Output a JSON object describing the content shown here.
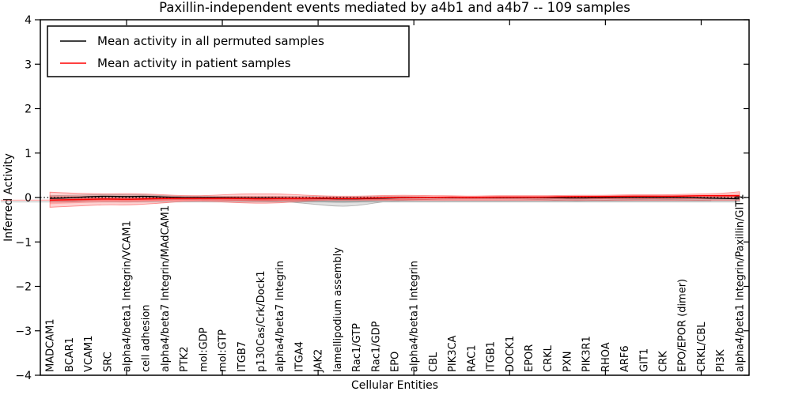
{
  "chart_data": {
    "type": "line",
    "title": "Paxillin-independent events mediated by a4b1 and a4b7 -- 109 samples",
    "xlabel": "Cellular Entities",
    "ylabel": "Inferred Activity",
    "ylim": [
      -4,
      4
    ],
    "ytick_labels": [
      "4",
      "3",
      "2",
      "1",
      "0",
      "−1",
      "−2",
      "−3",
      "−4"
    ],
    "ytick_values": [
      4,
      3,
      2,
      1,
      0,
      -1,
      -2,
      -3,
      -4
    ],
    "zero_line": "dotted",
    "grid": false,
    "legend_position": "upper left",
    "categories": [
      "MADCAM1",
      "BCAR1",
      "VCAM1",
      "SRC",
      "alpha4/beta1 Integrin/VCAM1",
      "cell adhesion",
      "alpha4/beta7 Integrin/MAdCAM1",
      "PTK2",
      "mol:GDP",
      "mol:GTP",
      "ITGB7",
      "p130Cas/Crk/Dock1",
      "alpha4/beta7 Integrin",
      "ITGA4",
      "JAK2",
      "lamellipodium assembly",
      "Rac1/GTP",
      "Rac1/GDP",
      "EPO",
      "alpha4/beta1 Integrin",
      "CBL",
      "PIK3CA",
      "RAC1",
      "ITGB1",
      "DOCK1",
      "EPOR",
      "CRKL",
      "PXN",
      "PIK3R1",
      "RHOA",
      "ARF6",
      "GIT1",
      "CRK",
      "EPO/EPOR (dimer)",
      "CRKL/CBL",
      "PI3K",
      "alpha4/beta1 Integrin/Paxillin/GIT1"
    ],
    "series": [
      {
        "name": "Mean activity in all permuted samples",
        "color": "#000000",
        "band_color": "#787878",
        "values": [
          -0.02,
          -0.01,
          0.02,
          0.03,
          0.02,
          0.03,
          0.01,
          0,
          0,
          0,
          -0.01,
          -0.01,
          -0.01,
          -0.02,
          -0.02,
          -0.03,
          -0.03,
          -0.02,
          -0.01,
          0,
          0,
          0,
          0,
          0,
          0,
          0,
          0,
          -0.01,
          -0.01,
          0,
          0,
          0,
          0,
          0,
          -0.01,
          -0.02,
          -0.03
        ],
        "band_upper": [
          0.04,
          0.05,
          0.06,
          0.07,
          0.06,
          0.06,
          0.04,
          0.02,
          0.02,
          0.02,
          0.02,
          0.02,
          0.02,
          0.02,
          0.02,
          0.01,
          0.01,
          0.02,
          0.02,
          0.02,
          0.01,
          0.01,
          0.01,
          0.01,
          0.01,
          0.01,
          0.01,
          0.02,
          0.02,
          0.01,
          0.01,
          0.01,
          0.01,
          0.01,
          0.01,
          0.02,
          0.03
        ],
        "band_lower": [
          -0.1,
          -0.09,
          -0.06,
          -0.04,
          -0.05,
          -0.04,
          -0.05,
          -0.04,
          -0.05,
          -0.06,
          -0.06,
          -0.07,
          -0.08,
          -0.12,
          -0.16,
          -0.2,
          -0.19,
          -0.12,
          -0.07,
          -0.05,
          -0.04,
          -0.03,
          -0.03,
          -0.03,
          -0.03,
          -0.04,
          -0.05,
          -0.08,
          -0.08,
          -0.06,
          -0.05,
          -0.04,
          -0.04,
          -0.05,
          -0.06,
          -0.08,
          -0.1
        ]
      },
      {
        "name": "Mean activity in patient samples",
        "color": "#ff0000",
        "band_color": "#ff3030",
        "values": [
          -0.06,
          -0.05,
          -0.04,
          -0.03,
          -0.04,
          -0.03,
          -0.02,
          -0.02,
          -0.02,
          -0.02,
          -0.02,
          -0.03,
          -0.02,
          -0.02,
          -0.01,
          -0.02,
          -0.02,
          -0.01,
          0,
          0,
          0,
          0.01,
          0,
          0.01,
          0.01,
          0.01,
          0.01,
          0.02,
          0.02,
          0.02,
          0.03,
          0.03,
          0.03,
          0.03,
          0.04,
          0.04,
          0.04
        ],
        "band_upper": [
          0.12,
          0.1,
          0.09,
          0.08,
          0.09,
          0.08,
          0.06,
          0.04,
          0.04,
          0.06,
          0.08,
          0.08,
          0.08,
          0.06,
          0.04,
          0.03,
          0.03,
          0.04,
          0.05,
          0.05,
          0.04,
          0.04,
          0.03,
          0.04,
          0.04,
          0.04,
          0.04,
          0.05,
          0.05,
          0.05,
          0.06,
          0.06,
          0.06,
          0.07,
          0.08,
          0.09,
          0.13
        ],
        "band_lower": [
          -0.22,
          -0.2,
          -0.18,
          -0.16,
          -0.17,
          -0.15,
          -0.12,
          -0.08,
          -0.08,
          -0.1,
          -0.12,
          -0.13,
          -0.12,
          -0.09,
          -0.06,
          -0.06,
          -0.06,
          -0.06,
          -0.05,
          -0.05,
          -0.04,
          -0.03,
          -0.03,
          -0.03,
          -0.03,
          -0.03,
          -0.03,
          -0.03,
          -0.03,
          -0.02,
          -0.02,
          -0.02,
          -0.02,
          -0.02,
          -0.02,
          -0.03,
          -0.06
        ]
      }
    ]
  }
}
